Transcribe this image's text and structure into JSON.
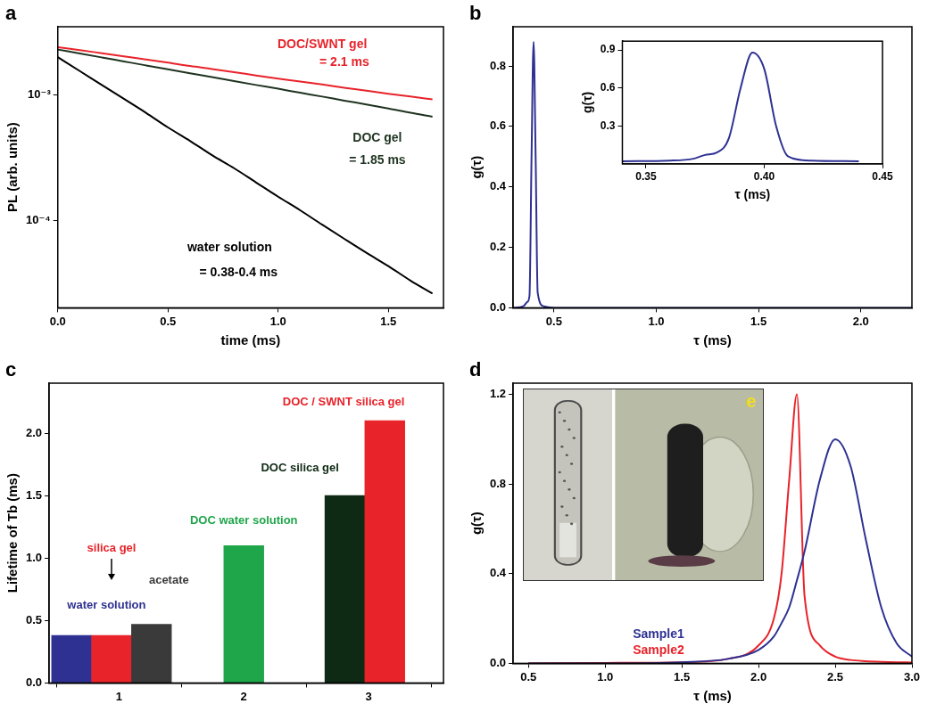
{
  "chart_data": [
    {
      "panel_label": "a",
      "type": "line",
      "log": "y",
      "grid": false,
      "x_label": "time (ms)",
      "y_label": "PL (arb. units)",
      "xlim": [
        0,
        1.75
      ],
      "xticks": [
        {
          "value": 0,
          "label": "0.0"
        },
        0.5,
        {
          "value": 1,
          "label": "1.0"
        },
        1.5
      ],
      "ylim": [
        2e-05,
        0.0035
      ],
      "yticks": [
        {
          "value": 0.0001,
          "label": "10⁻⁴"
        },
        {
          "value": 0.001,
          "label": "10⁻³"
        }
      ],
      "x": [
        0,
        0.1,
        0.2,
        0.3,
        0.4,
        0.5,
        0.6,
        0.7,
        0.8,
        0.9,
        1.0,
        1.1,
        1.2,
        1.3,
        1.4,
        1.5,
        1.6,
        1.7
      ],
      "series": [
        {
          "color": "#000000",
          "values": [
            0.002,
            0.00155,
            0.0012,
            0.00093,
            0.00072,
            0.00055,
            0.00043,
            0.00033,
            0.00026,
            0.0002,
            0.000154,
            0.00012,
            9.2e-05,
            7.1e-05,
            5.5e-05,
            4.3e-05,
            3.3e-05,
            2.6e-05
          ]
        },
        {
          "color": "#1f3320",
          "values": [
            0.0023,
            0.00214,
            0.00199,
            0.00185,
            0.00172,
            0.0016,
            0.00149,
            0.00139,
            0.00129,
            0.0012,
            0.00112,
            0.00104,
            0.00097,
            0.0009,
            0.00084,
            0.00078,
            0.00072,
            0.00067
          ]
        },
        {
          "color": "#e8232a",
          "values": [
            0.0024,
            0.00228,
            0.00215,
            0.00203,
            0.00192,
            0.00181,
            0.0017,
            0.00161,
            0.00152,
            0.00143,
            0.00135,
            0.00128,
            0.00121,
            0.00114,
            0.00108,
            0.00102,
            0.00097,
            0.00092
          ]
        }
      ],
      "annotations": [
        {
          "text": "DOC/SWNT gel",
          "x": 1.2,
          "y": 0.0025,
          "color": "#e8232a"
        },
        {
          "text": "= 2.1 ms",
          "x": 1.3,
          "y": 0.0018,
          "color": "#e8232a"
        },
        {
          "text": "DOC gel",
          "x": 1.45,
          "y": 0.00045,
          "color": "#1f3320"
        },
        {
          "text": "= 1.85 ms",
          "x": 1.45,
          "y": 0.0003,
          "color": "#1f3320"
        },
        {
          "text": "water solution",
          "x": 0.78,
          "y": 6e-05,
          "color": "#000000"
        },
        {
          "text": "= 0.38-0.4 ms",
          "x": 0.82,
          "y": 3.8e-05,
          "color": "#000000"
        }
      ]
    },
    {
      "panel_label": "b",
      "type": "line",
      "grid": false,
      "x_label": "τ (ms)",
      "y_label": "g(τ)",
      "xlim": [
        0.3,
        2.25
      ],
      "xticks": [
        0.5,
        {
          "value": 1,
          "label": "1.0"
        },
        1.5,
        {
          "value": 2,
          "label": "2.0"
        }
      ],
      "ylim": [
        0,
        0.93
      ],
      "yticks": [
        {
          "value": 0,
          "label": "0.0"
        },
        0.2,
        0.4,
        0.6,
        0.8
      ],
      "x": [
        0.3,
        0.35,
        0.37,
        0.38,
        0.39,
        0.4,
        0.41,
        0.42,
        0.45,
        0.5,
        1.0,
        1.5,
        2.0,
        2.25
      ],
      "series": [
        {
          "color": "#2e3192",
          "values": [
            0,
            0.005,
            0.02,
            0.04,
            0.5,
            0.88,
            0.5,
            0.05,
            0.005,
            0,
            0,
            0,
            0,
            0
          ]
        }
      ],
      "inset": {
        "type": "line",
        "grid": false,
        "x_label": "τ (ms)",
        "y_label": "g(τ)",
        "xlim": [
          0.34,
          0.45
        ],
        "xticks": [
          0.35,
          {
            "value": 0.4,
            "label": "0.40"
          },
          0.45
        ],
        "ylim": [
          0,
          0.97
        ],
        "yticks": [
          0.3,
          0.6,
          0.9
        ],
        "x": [
          0.34,
          0.36,
          0.37,
          0.375,
          0.38,
          0.385,
          0.39,
          0.395,
          0.4,
          0.405,
          0.41,
          0.42,
          0.44
        ],
        "series": [
          {
            "color": "#2e3192",
            "values": [
              0.02,
              0.025,
              0.04,
              0.07,
              0.09,
              0.2,
              0.6,
              0.88,
              0.75,
              0.3,
              0.06,
              0.025,
              0.02
            ]
          }
        ]
      }
    },
    {
      "panel_label": "c",
      "type": "bar",
      "grid": false,
      "y_label": "Lifetime of Tb (ms)",
      "xlim": [
        0.44,
        3.6
      ],
      "xticks": [
        1,
        2,
        3
      ],
      "ylim": [
        0,
        2.4
      ],
      "yticks": [
        {
          "value": 0,
          "label": "0.0"
        },
        0.5,
        {
          "value": 1,
          "label": "1.0"
        },
        1.5,
        {
          "value": 2,
          "label": "2.0"
        }
      ],
      "x": [
        0.62,
        0.94,
        1.26,
        2.0,
        2.81,
        3.13
      ],
      "values": [
        0.38,
        0.38,
        0.47,
        1.1,
        1.5,
        2.1
      ],
      "colors": [
        "#2e3192",
        "#e8232a",
        "#3a3a3a",
        "#1fa54a",
        "#0f2a14",
        "#e8232a"
      ],
      "annotations": [
        {
          "text": "water solution",
          "x": 0.9,
          "y": 0.62,
          "color": "#2e3192"
        },
        {
          "text": "silica gel",
          "x": 0.94,
          "y": 1.08,
          "color": "#e8232a"
        },
        {
          "text": "acetate",
          "x": 1.4,
          "y": 0.82,
          "color": "#3a3a3a"
        },
        {
          "text": "DOC water solution",
          "x": 2.0,
          "y": 1.3,
          "color": "#1fa54a"
        },
        {
          "text": "DOC silica gel",
          "x": 2.45,
          "y": 1.72,
          "color": "#0f2a14"
        },
        {
          "text": "DOC / SWNT silica gel",
          "x": 2.8,
          "y": 2.25,
          "color": "#e8232a"
        }
      ]
    },
    {
      "panel_label": "d",
      "type": "line",
      "grid": false,
      "legend": "bottom",
      "x_label": "τ (ms)",
      "y_label": "g(τ)",
      "xlim": [
        0.4,
        3.0
      ],
      "xticks": [
        0.5,
        {
          "value": 1,
          "label": "1.0"
        },
        1.5,
        {
          "value": 2,
          "label": "2.0"
        },
        2.5,
        {
          "value": 3,
          "label": "3.0"
        }
      ],
      "ylim": [
        0,
        1.25
      ],
      "yticks": [
        {
          "value": 0,
          "label": "0.0"
        },
        0.4,
        0.8,
        1.2
      ],
      "x": [
        0.5,
        1.0,
        1.5,
        1.8,
        2.0,
        2.1,
        2.15,
        2.2,
        2.25,
        2.3,
        2.4,
        2.5,
        2.6,
        2.7,
        2.8,
        2.9,
        3.0
      ],
      "series": [
        {
          "name": "Sample1",
          "color": "#2e3192",
          "values": [
            0,
            0,
            0.005,
            0.02,
            0.06,
            0.12,
            0.18,
            0.25,
            0.37,
            0.5,
            0.82,
            1.0,
            0.88,
            0.55,
            0.25,
            0.09,
            0.03
          ]
        },
        {
          "name": "Sample2",
          "color": "#e8232a",
          "values": [
            0,
            0.002,
            0.005,
            0.02,
            0.08,
            0.2,
            0.4,
            0.82,
            1.2,
            0.3,
            0.08,
            0.03,
            0.015,
            0.01,
            0.007,
            0.005,
            0.004
          ]
        }
      ],
      "inset_label": "e"
    }
  ]
}
